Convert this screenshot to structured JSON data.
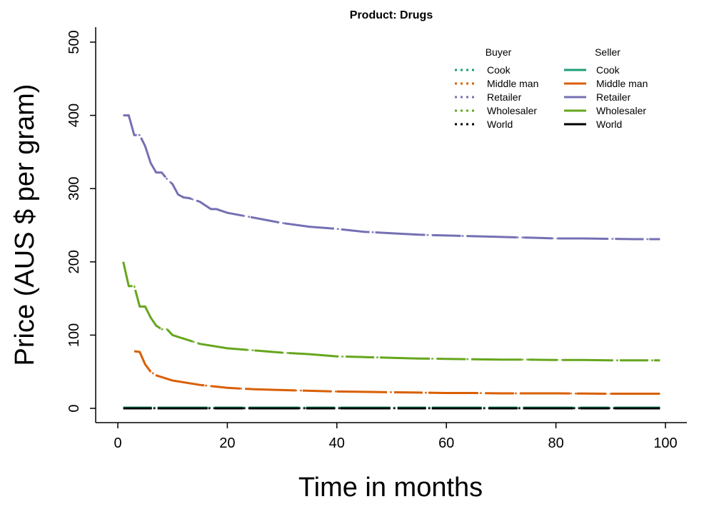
{
  "chart_data": {
    "type": "line",
    "title": "Product: Drugs",
    "xlabel": "Time in months",
    "ylabel": "Price (AUS $ per gram)",
    "xlim": [
      0,
      100
    ],
    "ylim": [
      0,
      500
    ],
    "xticks": [
      "0",
      "20",
      "40",
      "60",
      "80",
      "100"
    ],
    "yticks": [
      "0",
      "100",
      "200",
      "300",
      "400",
      "500"
    ],
    "grid": false,
    "legend": {
      "position": "top-right",
      "groups": [
        {
          "title": "Buyer",
          "style": "dotted",
          "entries": [
            "Cook",
            "Middle man",
            "Retailer",
            "Wholesaler",
            "World"
          ]
        },
        {
          "title": "Seller",
          "style": "solid",
          "entries": [
            "Cook",
            "Middle man",
            "Retailer",
            "Wholesaler",
            "World"
          ]
        }
      ]
    },
    "colors": {
      "Cook": "#1b9e77",
      "Middle man": "#d95f02",
      "Retailer": "#7570b3",
      "Wholesaler": "#66a61e",
      "World": "#000000"
    },
    "series": [
      {
        "name": "Cook",
        "role": "Buyer/Seller",
        "x": [
          1,
          20,
          40,
          60,
          80,
          99
        ],
        "y": [
          1,
          1,
          1,
          1,
          1,
          1
        ]
      },
      {
        "name": "Middle man",
        "role": "Buyer/Seller",
        "x": [
          3,
          4,
          5,
          6,
          7,
          10,
          15,
          20,
          25,
          30,
          35,
          40,
          45,
          50,
          55,
          60,
          65,
          70,
          75,
          80,
          85,
          90,
          95,
          99
        ],
        "y": [
          78,
          77,
          60,
          50,
          45,
          38,
          32,
          28,
          26,
          25,
          24,
          23,
          22.5,
          22,
          21.5,
          21,
          21,
          20.5,
          20.5,
          20.5,
          20.2,
          20,
          20,
          20
        ]
      },
      {
        "name": "Retailer",
        "role": "Buyer/Seller",
        "x": [
          1,
          2,
          3,
          4,
          5,
          6,
          7,
          8,
          9,
          10,
          11,
          12,
          13,
          15,
          17,
          18,
          20,
          25,
          30,
          35,
          40,
          45,
          50,
          55,
          60,
          65,
          70,
          75,
          80,
          85,
          90,
          95,
          99
        ],
        "y": [
          400,
          400,
          373,
          373,
          358,
          335,
          322,
          322,
          313,
          306,
          292,
          288,
          287,
          282,
          272,
          272,
          267,
          260,
          253,
          248,
          245,
          241,
          239,
          237,
          236,
          235,
          234,
          233,
          232,
          232,
          231.5,
          231,
          231
        ]
      },
      {
        "name": "Wholesaler",
        "role": "Buyer/Seller",
        "x": [
          1,
          2,
          3,
          4,
          5,
          6,
          7,
          8,
          9,
          10,
          15,
          20,
          25,
          30,
          35,
          40,
          45,
          50,
          55,
          60,
          65,
          70,
          75,
          80,
          85,
          90,
          95,
          99
        ],
        "y": [
          200,
          167,
          167,
          139,
          139,
          124,
          113,
          108,
          108,
          100,
          88,
          82,
          79,
          76,
          74,
          71,
          70,
          69,
          68,
          67.5,
          67,
          66.5,
          66.5,
          66,
          66,
          65.5,
          65.5,
          65.5
        ]
      },
      {
        "name": "World",
        "role": "Buyer/Seller",
        "x": [
          1,
          20,
          40,
          60,
          80,
          99
        ],
        "y": [
          0,
          0,
          0,
          0,
          0,
          0
        ]
      }
    ]
  }
}
